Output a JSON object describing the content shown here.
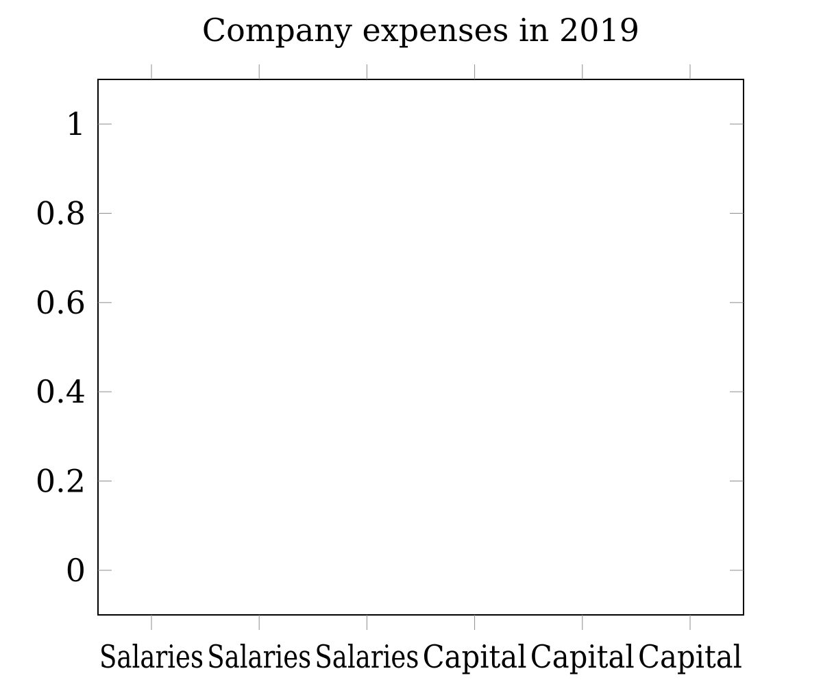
{
  "chart_data": {
    "type": "bar",
    "title": "Company expenses in 2019",
    "xlabel": "",
    "ylabel": "",
    "categories": [
      "Salaries",
      "Salaries",
      "Salaries",
      "Capital",
      "Capital",
      "Capital"
    ],
    "series": [],
    "ylim": [
      -0.1,
      1.1
    ],
    "yticks": [
      0,
      0.2,
      0.4,
      0.6,
      0.8,
      1
    ],
    "ytick_labels": [
      "0",
      "0.2",
      "0.4",
      "0.6",
      "0.8",
      "1"
    ],
    "grid": false,
    "legend": "none"
  }
}
